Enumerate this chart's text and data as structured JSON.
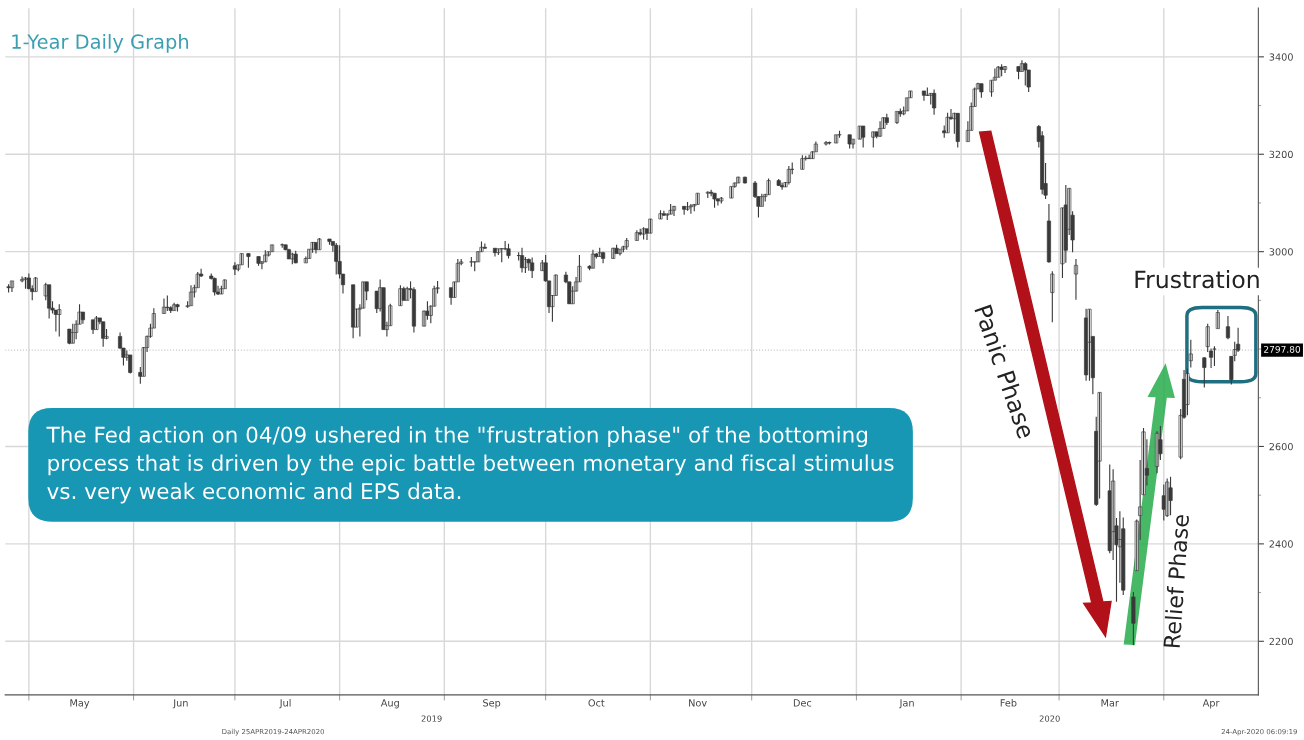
{
  "chart_data": {
    "type": "candlestick",
    "title": "1-Year Daily Graph",
    "color": "#3a3a3a",
    "grid": true,
    "ylim": [
      2090,
      3500
    ],
    "yticks": [
      2200,
      {
        "value": 2300,
        "label": null
      },
      2400,
      {
        "value": 2500,
        "label": null
      },
      2600,
      {
        "value": 2700,
        "label": null
      },
      {
        "value": 2800,
        "label": null
      },
      {
        "value": 2900,
        "label": null
      },
      3000,
      {
        "value": 3100,
        "label": null
      },
      3200,
      {
        "value": 3300,
        "label": null
      },
      3400
    ],
    "xlim": [
      "2019-04-24",
      "2020-04-29"
    ],
    "xticks": [
      {
        "value": "2019-05-01",
        "label": null
      },
      {
        "value": "2019-06-01",
        "label": null
      },
      {
        "value": "2019-07-01",
        "label": null
      },
      {
        "value": "2019-08-01",
        "label": null
      },
      {
        "value": "2019-09-01",
        "label": null
      },
      {
        "value": "2019-10-01",
        "label": null
      },
      {
        "value": "2019-11-01",
        "label": null
      },
      {
        "value": "2019-12-01",
        "label": null
      },
      {
        "value": "2020-01-01",
        "label": null
      },
      {
        "value": "2020-02-01",
        "label": null
      },
      {
        "value": "2020-03-01",
        "label": null
      },
      {
        "value": "2020-04-01",
        "label": null
      },
      {
        "value": "2019-05-16",
        "label": "May"
      },
      {
        "value": "2019-06-15",
        "label": "Jun"
      },
      {
        "value": "2019-07-16",
        "label": "Jul"
      },
      {
        "value": "2019-08-16",
        "label": "Aug"
      },
      {
        "value": "2019-09-15",
        "label": "Sep"
      },
      {
        "value": "2019-10-16",
        "label": "Oct"
      },
      {
        "value": "2019-11-15",
        "label": "Nov"
      },
      {
        "value": "2019-12-16",
        "label": "Dec"
      },
      {
        "value": "2020-01-16",
        "label": "Jan"
      },
      {
        "value": "2020-02-15",
        "label": "Feb"
      },
      {
        "value": "2020-03-16",
        "label": "Mar"
      },
      {
        "value": "2020-04-15",
        "label": "Apr"
      }
    ],
    "ref_lines": [
      {
        "axis": "y",
        "value": 2797.8,
        "label": "2797.80",
        "color": "#c8c8c8"
      }
    ],
    "annotations": [
      "The Fed action on 04/09 ushered in the \"frustration phase\" of the bottoming\nprocess that is driven by the epic battle between monetary and fiscal stimulus\nvs. very weak economic and EPS data.",
      "Daily 25APR2019-24APR2020",
      "24-Apr-2020 06:09:19",
      "2019",
      "2020",
      "Panic Phase",
      "Relief Phase",
      "Frustration"
    ],
    "x": [
      "2019-04-25",
      "2019-04-26",
      "2019-04-29",
      "2019-04-30",
      "2019-05-01",
      "2019-05-02",
      "2019-05-03",
      "2019-05-06",
      "2019-05-07",
      "2019-05-08",
      "2019-05-09",
      "2019-05-10",
      "2019-05-13",
      "2019-05-14",
      "2019-05-15",
      "2019-05-16",
      "2019-05-17",
      "2019-05-20",
      "2019-05-21",
      "2019-05-22",
      "2019-05-23",
      "2019-05-24",
      "2019-05-28",
      "2019-05-29",
      "2019-05-30",
      "2019-05-31",
      "2019-06-03",
      "2019-06-04",
      "2019-06-05",
      "2019-06-06",
      "2019-06-07",
      "2019-06-10",
      "2019-06-11",
      "2019-06-12",
      "2019-06-13",
      "2019-06-14",
      "2019-06-17",
      "2019-06-18",
      "2019-06-19",
      "2019-06-20",
      "2019-06-21",
      "2019-06-24",
      "2019-06-25",
      "2019-06-26",
      "2019-06-27",
      "2019-06-28",
      "2019-07-01",
      "2019-07-02",
      "2019-07-03",
      "2019-07-05",
      "2019-07-08",
      "2019-07-09",
      "2019-07-10",
      "2019-07-11",
      "2019-07-12",
      "2019-07-15",
      "2019-07-16",
      "2019-07-17",
      "2019-07-18",
      "2019-07-19",
      "2019-07-22",
      "2019-07-23",
      "2019-07-24",
      "2019-07-25",
      "2019-07-26",
      "2019-07-29",
      "2019-07-30",
      "2019-07-31",
      "2019-08-01",
      "2019-08-02",
      "2019-08-05",
      "2019-08-06",
      "2019-08-07",
      "2019-08-08",
      "2019-08-09",
      "2019-08-12",
      "2019-08-13",
      "2019-08-14",
      "2019-08-15",
      "2019-08-16",
      "2019-08-19",
      "2019-08-20",
      "2019-08-21",
      "2019-08-22",
      "2019-08-23",
      "2019-08-26",
      "2019-08-27",
      "2019-08-28",
      "2019-08-29",
      "2019-08-30",
      "2019-09-03",
      "2019-09-04",
      "2019-09-05",
      "2019-09-06",
      "2019-09-09",
      "2019-09-10",
      "2019-09-11",
      "2019-09-12",
      "2019-09-13",
      "2019-09-16",
      "2019-09-17",
      "2019-09-18",
      "2019-09-19",
      "2019-09-20",
      "2019-09-23",
      "2019-09-24",
      "2019-09-25",
      "2019-09-26",
      "2019-09-27",
      "2019-09-30",
      "2019-10-01",
      "2019-10-02",
      "2019-10-03",
      "2019-10-04",
      "2019-10-07",
      "2019-10-08",
      "2019-10-09",
      "2019-10-10",
      "2019-10-11",
      "2019-10-14",
      "2019-10-15",
      "2019-10-16",
      "2019-10-17",
      "2019-10-18",
      "2019-10-21",
      "2019-10-22",
      "2019-10-23",
      "2019-10-24",
      "2019-10-25",
      "2019-10-28",
      "2019-10-29",
      "2019-10-30",
      "2019-10-31",
      "2019-11-01",
      "2019-11-04",
      "2019-11-05",
      "2019-11-06",
      "2019-11-07",
      "2019-11-08",
      "2019-11-11",
      "2019-11-12",
      "2019-11-13",
      "2019-11-14",
      "2019-11-15",
      "2019-11-18",
      "2019-11-19",
      "2019-11-20",
      "2019-11-21",
      "2019-11-22",
      "2019-11-25",
      "2019-11-26",
      "2019-11-27",
      "2019-11-29",
      "2019-12-02",
      "2019-12-03",
      "2019-12-04",
      "2019-12-05",
      "2019-12-06",
      "2019-12-09",
      "2019-12-10",
      "2019-12-11",
      "2019-12-12",
      "2019-12-13",
      "2019-12-16",
      "2019-12-17",
      "2019-12-18",
      "2019-12-19",
      "2019-12-20",
      "2019-12-23",
      "2019-12-24",
      "2019-12-26",
      "2019-12-27",
      "2019-12-30",
      "2019-12-31",
      "2020-01-02",
      "2020-01-03",
      "2020-01-06",
      "2020-01-07",
      "2020-01-08",
      "2020-01-09",
      "2020-01-10",
      "2020-01-13",
      "2020-01-14",
      "2020-01-15",
      "2020-01-16",
      "2020-01-17",
      "2020-01-21",
      "2020-01-22",
      "2020-01-23",
      "2020-01-24",
      "2020-01-27",
      "2020-01-28",
      "2020-01-29",
      "2020-01-30",
      "2020-01-31",
      "2020-02-03",
      "2020-02-04",
      "2020-02-05",
      "2020-02-06",
      "2020-02-07",
      "2020-02-10",
      "2020-02-11",
      "2020-02-12",
      "2020-02-13",
      "2020-02-14",
      "2020-02-18",
      "2020-02-19",
      "2020-02-20",
      "2020-02-21",
      "2020-02-24",
      "2020-02-25",
      "2020-02-26",
      "2020-02-27",
      "2020-02-28",
      "2020-03-02",
      "2020-03-03",
      "2020-03-04",
      "2020-03-05",
      "2020-03-06",
      "2020-03-09",
      "2020-03-10",
      "2020-03-11",
      "2020-03-12",
      "2020-03-13",
      "2020-03-16",
      "2020-03-17",
      "2020-03-18",
      "2020-03-19",
      "2020-03-20",
      "2020-03-23",
      "2020-03-24",
      "2020-03-25",
      "2020-03-26",
      "2020-03-27",
      "2020-03-30",
      "2020-03-31",
      "2020-04-01",
      "2020-04-02",
      "2020-04-03",
      "2020-04-06",
      "2020-04-07",
      "2020-04-08",
      "2020-04-09",
      "2020-04-13",
      "2020-04-14",
      "2020-04-15",
      "2020-04-16",
      "2020-04-17",
      "2020-04-20",
      "2020-04-21",
      "2020-04-22",
      "2020-04-23"
    ],
    "ohlc": [
      [
        2928,
        2933,
        2916,
        2926
      ],
      [
        2926,
        2940,
        2917,
        2940
      ],
      [
        2940,
        2949,
        2937,
        2943
      ],
      [
        2943,
        2948,
        2924,
        2946
      ],
      [
        2946,
        2955,
        2923,
        2924
      ],
      [
        2924,
        2931,
        2900,
        2918
      ],
      [
        2918,
        2948,
        2918,
        2946
      ],
      [
        2909,
        2936,
        2900,
        2932
      ],
      [
        2932,
        2932,
        2863,
        2884
      ],
      [
        2884,
        2898,
        2873,
        2880
      ],
      [
        2880,
        2880,
        2836,
        2871
      ],
      [
        2871,
        2892,
        2826,
        2881
      ],
      [
        2841,
        2841,
        2810,
        2812
      ],
      [
        2812,
        2852,
        2812,
        2834
      ],
      [
        2834,
        2859,
        2820,
        2851
      ],
      [
        2851,
        2892,
        2851,
        2876
      ],
      [
        2876,
        2876,
        2852,
        2860
      ],
      [
        2860,
        2860,
        2831,
        2840
      ],
      [
        2840,
        2868,
        2840,
        2864
      ],
      [
        2864,
        2864,
        2851,
        2856
      ],
      [
        2856,
        2856,
        2805,
        2822
      ],
      [
        2822,
        2841,
        2820,
        2826
      ],
      [
        2826,
        2834,
        2800,
        2802
      ],
      [
        2802,
        2802,
        2766,
        2783
      ],
      [
        2783,
        2797,
        2776,
        2788
      ],
      [
        2788,
        2788,
        2750,
        2752
      ],
      [
        2752,
        2763,
        2729,
        2744
      ],
      [
        2744,
        2804,
        2744,
        2803
      ],
      [
        2803,
        2828,
        2794,
        2826
      ],
      [
        2826,
        2852,
        2823,
        2843
      ],
      [
        2843,
        2884,
        2843,
        2873
      ],
      [
        2873,
        2904,
        2873,
        2886
      ],
      [
        2886,
        2910,
        2878,
        2885
      ],
      [
        2885,
        2888,
        2874,
        2879
      ],
      [
        2879,
        2895,
        2879,
        2891
      ],
      [
        2891,
        2893,
        2877,
        2887
      ],
      [
        2887,
        2898,
        2885,
        2889
      ],
      [
        2889,
        2931,
        2889,
        2917
      ],
      [
        2917,
        2932,
        2906,
        2926
      ],
      [
        2926,
        2958,
        2926,
        2954
      ],
      [
        2954,
        2965,
        2948,
        2950
      ],
      [
        2950,
        2955,
        2943,
        2945
      ],
      [
        2945,
        2947,
        2910,
        2917
      ],
      [
        2917,
        2930,
        2911,
        2913
      ],
      [
        2913,
        2930,
        2913,
        2924
      ],
      [
        2924,
        2943,
        2924,
        2942
      ],
      [
        2971,
        2978,
        2952,
        2964
      ],
      [
        2964,
        2973,
        2960,
        2973
      ],
      [
        2973,
        2996,
        2973,
        2996
      ],
      [
        2996,
        2996,
        2967,
        2990
      ],
      [
        2990,
        2990,
        2971,
        2976
      ],
      [
        2976,
        2981,
        2964,
        2979
      ],
      [
        2979,
        3003,
        2979,
        2993
      ],
      [
        2993,
        3000,
        2990,
        3000
      ],
      [
        3000,
        3014,
        3000,
        3014
      ],
      [
        3014,
        3017,
        3008,
        3014
      ],
      [
        3014,
        3014,
        3003,
        3004
      ],
      [
        3004,
        3006,
        2985,
        2985
      ],
      [
        2985,
        2998,
        2974,
        2995
      ],
      [
        2995,
        3002,
        2976,
        2977
      ],
      [
        2977,
        2990,
        2977,
        2986
      ],
      [
        2986,
        3005,
        2986,
        3005
      ],
      [
        3005,
        3020,
        2998,
        3019
      ],
      [
        3019,
        3019,
        2996,
        3004
      ],
      [
        3004,
        3028,
        3004,
        3026
      ],
      [
        3026,
        3026,
        3014,
        3021
      ],
      [
        3021,
        3021,
        3000,
        3013
      ],
      [
        3013,
        3018,
        2953,
        2980
      ],
      [
        2980,
        3013,
        2945,
        2954
      ],
      [
        2954,
        2954,
        2914,
        2932
      ],
      [
        2932,
        2932,
        2822,
        2845
      ],
      [
        2845,
        2883,
        2845,
        2882
      ],
      [
        2882,
        2892,
        2826,
        2884
      ],
      [
        2884,
        2938,
        2884,
        2938
      ],
      [
        2938,
        2938,
        2900,
        2919
      ],
      [
        2919,
        2919,
        2874,
        2883
      ],
      [
        2883,
        2943,
        2877,
        2926
      ],
      [
        2926,
        2926,
        2840,
        2840
      ],
      [
        2840,
        2856,
        2826,
        2848
      ],
      [
        2848,
        2893,
        2848,
        2889
      ],
      [
        2889,
        2931,
        2889,
        2924
      ],
      [
        2924,
        2928,
        2900,
        2900
      ],
      [
        2900,
        2928,
        2900,
        2924
      ],
      [
        2924,
        2939,
        2904,
        2922
      ],
      [
        2922,
        2927,
        2834,
        2847
      ],
      [
        2847,
        2879,
        2847,
        2878
      ],
      [
        2878,
        2898,
        2860,
        2869
      ],
      [
        2869,
        2890,
        2853,
        2888
      ],
      [
        2888,
        2930,
        2888,
        2924
      ],
      [
        2924,
        2940,
        2914,
        2926
      ],
      [
        2926,
        2926,
        2891,
        2906
      ],
      [
        2906,
        2938,
        2906,
        2938
      ],
      [
        2938,
        2985,
        2938,
        2976
      ],
      [
        2976,
        2985,
        2972,
        2979
      ],
      [
        2979,
        2989,
        2969,
        2979
      ],
      [
        2979,
        2980,
        2960,
        2979
      ],
      [
        2979,
        3001,
        2979,
        3000
      ],
      [
        3000,
        3021,
        3000,
        3009
      ],
      [
        3009,
        3017,
        3006,
        3007
      ],
      [
        3007,
        3007,
        2990,
        2998
      ],
      [
        2998,
        3006,
        2993,
        3006
      ],
      [
        3006,
        3007,
        2978,
        3006
      ],
      [
        3006,
        3022,
        3003,
        3006
      ],
      [
        3006,
        3016,
        2986,
        2992
      ],
      [
        2992,
        2999,
        2982,
        2992
      ],
      [
        2992,
        3008,
        2957,
        2967
      ],
      [
        2967,
        2989,
        2956,
        2984
      ],
      [
        2984,
        2986,
        2961,
        2977
      ],
      [
        2977,
        2988,
        2946,
        2961
      ],
      [
        2961,
        2983,
        2961,
        2977
      ],
      [
        2977,
        2993,
        2938,
        2940
      ],
      [
        2940,
        2940,
        2874,
        2887
      ],
      [
        2887,
        2911,
        2856,
        2910
      ],
      [
        2910,
        2953,
        2910,
        2952
      ],
      [
        2952,
        2959,
        2935,
        2938
      ],
      [
        2938,
        2938,
        2893,
        2893
      ],
      [
        2893,
        2929,
        2893,
        2919
      ],
      [
        2919,
        2948,
        2918,
        2938
      ],
      [
        2938,
        2993,
        2938,
        2970
      ],
      [
        2970,
        2972,
        2962,
        2966
      ],
      [
        2966,
        3004,
        2966,
        2995
      ],
      [
        2995,
        2997,
        2986,
        2990
      ],
      [
        2990,
        3008,
        2990,
        2998
      ],
      [
        2998,
        3000,
        2976,
        2986
      ],
      [
        2986,
        3008,
        2986,
        3007
      ],
      [
        3007,
        3014,
        2996,
        2996
      ],
      [
        2996,
        3005,
        2992,
        3005
      ],
      [
        3005,
        3012,
        2999,
        3010
      ],
      [
        3010,
        3028,
        3004,
        3023
      ],
      [
        3023,
        3044,
        3023,
        3039
      ],
      [
        3039,
        3047,
        3033,
        3036
      ],
      [
        3036,
        3050,
        3025,
        3047
      ],
      [
        3047,
        3047,
        3024,
        3038
      ],
      [
        3038,
        3067,
        3038,
        3067
      ],
      [
        3067,
        3085,
        3067,
        3078
      ],
      [
        3078,
        3084,
        3073,
        3075
      ],
      [
        3075,
        3079,
        3065,
        3077
      ],
      [
        3077,
        3098,
        3077,
        3085
      ],
      [
        3085,
        3094,
        3073,
        3093
      ],
      [
        3093,
        3093,
        3076,
        3087
      ],
      [
        3087,
        3102,
        3084,
        3092
      ],
      [
        3092,
        3098,
        3078,
        3094
      ],
      [
        3094,
        3098,
        3083,
        3097
      ],
      [
        3097,
        3120,
        3097,
        3120
      ],
      [
        3120,
        3124,
        3110,
        3122
      ],
      [
        3122,
        3127,
        3114,
        3120
      ],
      [
        3120,
        3120,
        3090,
        3108
      ],
      [
        3108,
        3110,
        3095,
        3104
      ],
      [
        3104,
        3112,
        3099,
        3110
      ],
      [
        3110,
        3134,
        3110,
        3134
      ],
      [
        3134,
        3142,
        3131,
        3141
      ],
      [
        3141,
        3154,
        3141,
        3153
      ],
      [
        3153,
        3154,
        3140,
        3141
      ],
      [
        3141,
        3145,
        3110,
        3113
      ],
      [
        3113,
        3113,
        3070,
        3093
      ],
      [
        3093,
        3119,
        3093,
        3113
      ],
      [
        3113,
        3119,
        3103,
        3117
      ],
      [
        3117,
        3150,
        3117,
        3146
      ],
      [
        3146,
        3149,
        3135,
        3136
      ],
      [
        3136,
        3142,
        3127,
        3133
      ],
      [
        3133,
        3143,
        3133,
        3142
      ],
      [
        3142,
        3176,
        3138,
        3169
      ],
      [
        3169,
        3183,
        3159,
        3169
      ],
      [
        3169,
        3198,
        3169,
        3191
      ],
      [
        3191,
        3197,
        3187,
        3192
      ],
      [
        3192,
        3199,
        3191,
        3191
      ],
      [
        3191,
        3206,
        3191,
        3205
      ],
      [
        3205,
        3226,
        3205,
        3221
      ],
      [
        3221,
        3227,
        3218,
        3224
      ],
      [
        3224,
        3226,
        3220,
        3223
      ],
      [
        3223,
        3240,
        3223,
        3240
      ],
      [
        3240,
        3248,
        3234,
        3240
      ],
      [
        3240,
        3240,
        3212,
        3221
      ],
      [
        3221,
        3231,
        3212,
        3231
      ],
      [
        3231,
        3258,
        3231,
        3258
      ],
      [
        3258,
        3258,
        3214,
        3235
      ],
      [
        3235,
        3246,
        3214,
        3246
      ],
      [
        3246,
        3246,
        3233,
        3237
      ],
      [
        3237,
        3268,
        3236,
        3253
      ],
      [
        3253,
        3276,
        3253,
        3275
      ],
      [
        3275,
        3283,
        3260,
        3265
      ],
      [
        3265,
        3288,
        3262,
        3288
      ],
      [
        3288,
        3294,
        3277,
        3283
      ],
      [
        3283,
        3298,
        3280,
        3289
      ],
      [
        3289,
        3316,
        3289,
        3316
      ],
      [
        3316,
        3330,
        3316,
        3330
      ],
      [
        3330,
        3330,
        3310,
        3321
      ],
      [
        3321,
        3337,
        3320,
        3321
      ],
      [
        3321,
        3326,
        3302,
        3325
      ],
      [
        3325,
        3333,
        3281,
        3295
      ],
      [
        3248,
        3259,
        3234,
        3244
      ],
      [
        3244,
        3285,
        3244,
        3276
      ],
      [
        3276,
        3293,
        3271,
        3273
      ],
      [
        3273,
        3285,
        3242,
        3284
      ],
      [
        3284,
        3284,
        3214,
        3226
      ],
      [
        3226,
        3268,
        3226,
        3249
      ],
      [
        3249,
        3306,
        3249,
        3298
      ],
      [
        3298,
        3337,
        3298,
        3334
      ],
      [
        3334,
        3347,
        3334,
        3345
      ],
      [
        3345,
        3345,
        3316,
        3328
      ],
      [
        3328,
        3352,
        3318,
        3352
      ],
      [
        3352,
        3376,
        3352,
        3358
      ],
      [
        3358,
        3381,
        3358,
        3379
      ],
      [
        3379,
        3385,
        3360,
        3374
      ],
      [
        3374,
        3381,
        3367,
        3380
      ],
      [
        3380,
        3380,
        3354,
        3370
      ],
      [
        3370,
        3393,
        3370,
        3386
      ],
      [
        3386,
        3389,
        3341,
        3373
      ],
      [
        3373,
        3373,
        3328,
        3338
      ],
      [
        3257,
        3260,
        3214,
        3226
      ],
      [
        3238,
        3247,
        3118,
        3128
      ],
      [
        3140,
        3182,
        3108,
        3116
      ],
      [
        3063,
        3098,
        2977,
        2979
      ],
      [
        2916,
        2960,
        2855,
        2954
      ],
      [
        2975,
        3090,
        2946,
        3090
      ],
      [
        3096,
        3137,
        2977,
        3003
      ],
      [
        3046,
        3130,
        3034,
        3130
      ],
      [
        3075,
        3083,
        2999,
        3024
      ],
      [
        2954,
        2985,
        2901,
        2972
      ],
      [
        2864,
        2883,
        2735,
        2747
      ],
      [
        2814,
        2882,
        2735,
        2882
      ],
      [
        2826,
        2826,
        2707,
        2741
      ],
      [
        2631,
        2661,
        2478,
        2481
      ],
      [
        2570,
        2711,
        2493,
        2711
      ],
      [
        2509,
        2563,
        2381,
        2386
      ],
      [
        2425,
        2553,
        2367,
        2529
      ],
      [
        2437,
        2453,
        2281,
        2398
      ],
      [
        2394,
        2467,
        2320,
        2409
      ],
      [
        2431,
        2454,
        2295,
        2305
      ],
      [
        2291,
        2301,
        2192,
        2237
      ],
      [
        2345,
        2450,
        2345,
        2447
      ],
      [
        2458,
        2572,
        2408,
        2476
      ],
      [
        2501,
        2638,
        2501,
        2630
      ],
      [
        2555,
        2615,
        2520,
        2541
      ],
      [
        2559,
        2631,
        2545,
        2627
      ],
      [
        2614,
        2642,
        2572,
        2585
      ],
      [
        2499,
        2522,
        2448,
        2471
      ],
      [
        2458,
        2534,
        2455,
        2527
      ],
      [
        2515,
        2538,
        2459,
        2489
      ],
      [
        2578,
        2677,
        2574,
        2664
      ],
      [
        2738,
        2757,
        2657,
        2660
      ],
      [
        2686,
        2760,
        2664,
        2750
      ],
      [
        2776,
        2819,
        2762,
        2790
      ],
      [
        2782,
        2783,
        2721,
        2762
      ],
      [
        2805,
        2852,
        2794,
        2846
      ],
      [
        2796,
        2801,
        2761,
        2783
      ],
      [
        2800,
        2806,
        2765,
        2800
      ],
      [
        2842,
        2880,
        2842,
        2875
      ],
      [
        2846,
        2868,
        2820,
        2823
      ],
      [
        2785,
        2785,
        2727,
        2737
      ],
      [
        2787,
        2815,
        2775,
        2799
      ],
      [
        2810,
        2844,
        2794,
        2797.8
      ]
    ]
  }
}
